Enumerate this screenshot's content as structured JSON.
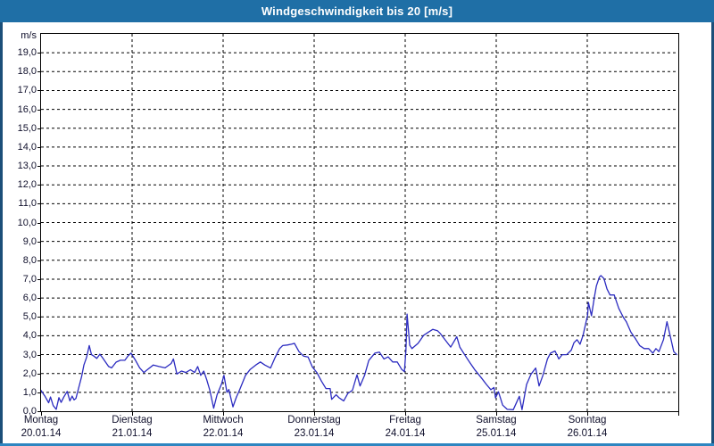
{
  "window": {
    "title": "Windgeschwindigkeit bis 20 [m/s]"
  },
  "colors": {
    "titlebar_bg": "#1f6fa6",
    "frame_side": "#1b4f79",
    "frame_bottom": "#2e86c1",
    "plot_border": "#000000",
    "grid": "#000000",
    "line": "#2b2bc0",
    "label_text": "#10102c"
  },
  "chart_data": {
    "type": "line",
    "title": "Windgeschwindigkeit bis 20 [m/s]",
    "unit_label": "m/s",
    "ylim": [
      0,
      20
    ],
    "ytick_step": 1,
    "ytick_labels_top_to_bottom": [
      "19,0",
      "18,0",
      "17,0",
      "16,0",
      "15,0",
      "14,0",
      "13,0",
      "12,0",
      "11,0",
      "10,0",
      "9,0",
      "8,0",
      "7,0",
      "6,0",
      "5,0",
      "4,0",
      "3,0",
      "2,0",
      "1,0",
      "0,0"
    ],
    "grid": "dashed",
    "legend": "none",
    "x_axis": {
      "total_hours": 168,
      "days": [
        {
          "name": "Montag",
          "date": "20.01.14"
        },
        {
          "name": "Dienstag",
          "date": "21.01.14"
        },
        {
          "name": "Mittwoch",
          "date": "22.01.14"
        },
        {
          "name": "Donnerstag",
          "date": "23.01.14"
        },
        {
          "name": "Freitag",
          "date": "24.01.14"
        },
        {
          "name": "Samstag",
          "date": "25.01.14"
        },
        {
          "name": "Sonntag",
          "date": "26.01.14"
        }
      ]
    },
    "series": [
      {
        "name": "Windgeschwindigkeit",
        "unit": "m/s",
        "points_hour_value": [
          [
            0,
            1.1
          ],
          [
            1,
            0.8
          ],
          [
            2,
            0.45
          ],
          [
            2.5,
            0.75
          ],
          [
            3.2,
            0.3
          ],
          [
            4,
            0.1
          ],
          [
            4.7,
            0.72
          ],
          [
            5.3,
            0.47
          ],
          [
            6,
            0.75
          ],
          [
            6.9,
            1.05
          ],
          [
            7.6,
            0.55
          ],
          [
            8.2,
            0.8
          ],
          [
            8.7,
            0.6
          ],
          [
            9.2,
            0.68
          ],
          [
            10,
            1.3
          ],
          [
            10.7,
            1.85
          ],
          [
            11.3,
            2.45
          ],
          [
            12,
            2.85
          ],
          [
            12.7,
            3.48
          ],
          [
            13.3,
            3.0
          ],
          [
            13.9,
            2.92
          ],
          [
            14.7,
            2.8
          ],
          [
            15.5,
            3.02
          ],
          [
            16.2,
            2.84
          ],
          [
            17,
            2.6
          ],
          [
            17.8,
            2.37
          ],
          [
            18.6,
            2.3
          ],
          [
            19.8,
            2.6
          ],
          [
            20.9,
            2.7
          ],
          [
            22.1,
            2.7
          ],
          [
            22.9,
            2.92
          ],
          [
            23.7,
            3.08
          ],
          [
            24.9,
            2.7
          ],
          [
            26,
            2.3
          ],
          [
            27.1,
            2.05
          ],
          [
            28,
            2.2
          ],
          [
            29.6,
            2.45
          ],
          [
            31.1,
            2.37
          ],
          [
            32.7,
            2.3
          ],
          [
            34.3,
            2.53
          ],
          [
            34.9,
            2.77
          ],
          [
            35.8,
            1.97
          ],
          [
            37,
            2.13
          ],
          [
            38.2,
            2.05
          ],
          [
            39.4,
            2.2
          ],
          [
            40.5,
            2.05
          ],
          [
            41.3,
            2.37
          ],
          [
            42.1,
            1.9
          ],
          [
            42.9,
            2.13
          ],
          [
            43.7,
            1.66
          ],
          [
            44.5,
            1.11
          ],
          [
            45.5,
            0.16
          ],
          [
            46.4,
            0.87
          ],
          [
            47.6,
            1.45
          ],
          [
            48.2,
            1.9
          ],
          [
            49,
            1.0
          ],
          [
            49.5,
            1.15
          ],
          [
            50.6,
            0.23
          ],
          [
            51.5,
            0.75
          ],
          [
            52.3,
            1.11
          ],
          [
            53.9,
            1.9
          ],
          [
            55.1,
            2.21
          ],
          [
            56.6,
            2.45
          ],
          [
            57.8,
            2.61
          ],
          [
            59,
            2.45
          ],
          [
            60.5,
            2.29
          ],
          [
            61.7,
            2.84
          ],
          [
            62.9,
            3.32
          ],
          [
            63.7,
            3.48
          ],
          [
            64.9,
            3.51
          ],
          [
            66,
            3.55
          ],
          [
            66.8,
            3.6
          ],
          [
            68,
            3.16
          ],
          [
            69.2,
            2.92
          ],
          [
            70.4,
            2.87
          ],
          [
            71.5,
            2.35
          ],
          [
            72.7,
            2.05
          ],
          [
            73.9,
            1.6
          ],
          [
            75.1,
            1.2
          ],
          [
            76.2,
            1.2
          ],
          [
            76.6,
            0.63
          ],
          [
            77.8,
            0.87
          ],
          [
            78.6,
            0.71
          ],
          [
            79.8,
            0.55
          ],
          [
            80.9,
            0.95
          ],
          [
            82.1,
            1.11
          ],
          [
            83.3,
            1.93
          ],
          [
            84.1,
            1.34
          ],
          [
            85.3,
            1.9
          ],
          [
            86.4,
            2.69
          ],
          [
            88,
            3.08
          ],
          [
            89.2,
            3.13
          ],
          [
            90.4,
            2.77
          ],
          [
            91.5,
            2.88
          ],
          [
            92.7,
            2.61
          ],
          [
            93.9,
            2.61
          ],
          [
            95.1,
            2.21
          ],
          [
            95.8,
            2.1
          ],
          [
            96.2,
            3.2
          ],
          [
            96.5,
            5.15
          ],
          [
            97.2,
            3.5
          ],
          [
            97.8,
            3.32
          ],
          [
            99.4,
            3.6
          ],
          [
            100.9,
            4.03
          ],
          [
            102.1,
            4.19
          ],
          [
            103.3,
            4.34
          ],
          [
            104.5,
            4.27
          ],
          [
            105.3,
            4.11
          ],
          [
            106.8,
            3.71
          ],
          [
            108,
            3.4
          ],
          [
            109.6,
            3.95
          ],
          [
            110.4,
            3.4
          ],
          [
            111.9,
            2.92
          ],
          [
            113.1,
            2.56
          ],
          [
            114.3,
            2.21
          ],
          [
            116.2,
            1.74
          ],
          [
            117.4,
            1.42
          ],
          [
            118.6,
            1.14
          ],
          [
            119.4,
            1.26
          ],
          [
            119.8,
            0.71
          ],
          [
            120.6,
            1.03
          ],
          [
            121.7,
            0.32
          ],
          [
            122.9,
            0.1
          ],
          [
            124.5,
            0.08
          ],
          [
            126.1,
            0.79
          ],
          [
            126.8,
            0.08
          ],
          [
            128,
            1.42
          ],
          [
            129.2,
            1.97
          ],
          [
            130.4,
            2.29
          ],
          [
            131.3,
            1.34
          ],
          [
            132.3,
            1.9
          ],
          [
            133.5,
            2.77
          ],
          [
            134.3,
            3.08
          ],
          [
            135.5,
            3.19
          ],
          [
            136.5,
            2.77
          ],
          [
            137.4,
            3.0
          ],
          [
            138.6,
            3.0
          ],
          [
            139.8,
            3.24
          ],
          [
            140.5,
            3.63
          ],
          [
            141.3,
            3.79
          ],
          [
            142.1,
            3.55
          ],
          [
            142.9,
            4.03
          ],
          [
            144.1,
            5.1
          ],
          [
            144.3,
            5.77
          ],
          [
            145.1,
            5.06
          ],
          [
            145.9,
            6.08
          ],
          [
            146.4,
            6.64
          ],
          [
            147.2,
            7.11
          ],
          [
            147.6,
            7.19
          ],
          [
            148.4,
            7.03
          ],
          [
            149.2,
            6.48
          ],
          [
            150,
            6.16
          ],
          [
            151.1,
            6.16
          ],
          [
            152.3,
            5.45
          ],
          [
            153.5,
            4.98
          ],
          [
            154.3,
            4.74
          ],
          [
            155.5,
            4.19
          ],
          [
            156.6,
            3.87
          ],
          [
            157.8,
            3.48
          ],
          [
            159,
            3.32
          ],
          [
            160.2,
            3.32
          ],
          [
            161.3,
            3.08
          ],
          [
            162.1,
            3.32
          ],
          [
            162.9,
            3.16
          ],
          [
            164.1,
            3.79
          ],
          [
            164.7,
            4.42
          ],
          [
            165,
            4.74
          ],
          [
            166.1,
            3.79
          ],
          [
            166.8,
            3.16
          ],
          [
            167.6,
            3.0
          ]
        ]
      }
    ]
  }
}
